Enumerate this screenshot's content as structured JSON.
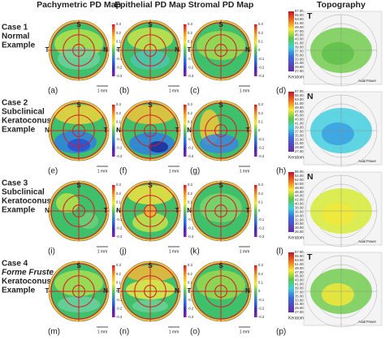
{
  "columns": [
    "Pachymetric PD Map",
    "Epithelial PD Map",
    "Stromal PD Map",
    "Topography"
  ],
  "scale_bar": "1 mm",
  "keratometric": "Keratometric",
  "axial_power": "Axial Power",
  "superior": "S",
  "pd_scale": [
    "0.3",
    "0.2",
    "0.1",
    "0",
    "-0.1",
    "-0.2",
    "-0.3"
  ],
  "rows": [
    {
      "label_lines": [
        "Case 1",
        "Normal",
        "Example"
      ],
      "panels": [
        "(a)",
        "(b)",
        "(c)",
        "(d)"
      ],
      "left": "T",
      "right": "N",
      "topo_letter": "T",
      "topo_scale": [
        "57.00",
        "55.00",
        "53.00",
        "51.00",
        "49.00",
        "47.00",
        "45.00",
        "43.00",
        "41.00",
        "39.00",
        "37.00",
        "35.00",
        "33.00",
        "31.00",
        "29.00",
        "27.00"
      ]
    },
    {
      "label_lines": [
        "Case 2",
        "Subclinical",
        "Keratoconus",
        "Example"
      ],
      "panels": [
        "(e)",
        "(f)",
        "(g)",
        "(h)"
      ],
      "left": "N",
      "right": "T",
      "topo_letter": "N",
      "topo_scale": [
        "57.00",
        "55.00",
        "53.00",
        "51.00",
        "49.00",
        "47.00",
        "45.00",
        "43.00",
        "41.00",
        "39.00",
        "37.00",
        "35.00",
        "33.00",
        "31.00",
        "29.00",
        "27.00"
      ]
    },
    {
      "label_lines": [
        "Case 3",
        "Subclinical",
        "Keratoconus",
        "Example"
      ],
      "panels": [
        "(i)",
        "(j)",
        "(k)",
        "(l)"
      ],
      "left": "N",
      "right": "T",
      "topo_letter": "N",
      "topo_scale": [
        "56.00",
        "54.00",
        "52.00",
        "50.00",
        "48.00",
        "46.00",
        "44.00",
        "42.00",
        "40.00",
        "38.00",
        "36.00",
        "34.00",
        "32.00",
        "30.00",
        "28.00",
        "26.00"
      ]
    },
    {
      "label_lines": [
        "Case 4",
        "Forme Fruste",
        "Keratoconus",
        "Example"
      ],
      "panels": [
        "(m)",
        "(n)",
        "(o)",
        "(p)"
      ],
      "left": "T",
      "right": "N",
      "topo_letter": "T",
      "topo_scale": [
        "57.00",
        "55.00",
        "53.00",
        "51.00",
        "49.00",
        "47.00",
        "45.00",
        "43.00",
        "41.00",
        "39.00",
        "37.00",
        "35.00",
        "33.00",
        "31.00",
        "29.00",
        "27.00"
      ]
    }
  ]
}
